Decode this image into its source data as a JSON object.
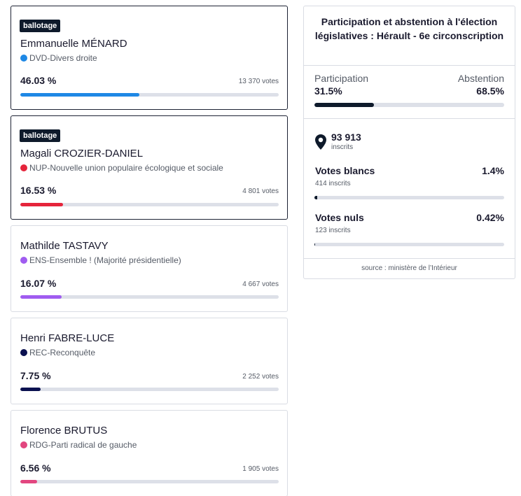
{
  "badge_label": "ballotage",
  "candidates": [
    {
      "name": "Emmanuelle MÉNARD",
      "party": "DVD-Divers droite",
      "color": "#1e88e5",
      "pct": "46.03 %",
      "pct_value": 46.03,
      "votes": "13 370 votes"
    },
    {
      "name": "Magali CROZIER-DANIEL",
      "party": "NUP-Nouvelle union populaire écologique et sociale",
      "color": "#e5243b",
      "pct": "16.53 %",
      "pct_value": 16.53,
      "votes": "4 801 votes"
    },
    {
      "name": "Mathilde TASTAVY",
      "party": "ENS-Ensemble ! (Majorité présidentielle)",
      "color": "#a05cf0",
      "pct": "16.07 %",
      "pct_value": 16.07,
      "votes": "4 667 votes"
    },
    {
      "name": "Henri FABRE-LUCE",
      "party": "REC-Reconquête",
      "color": "#0b1150",
      "pct": "7.75 %",
      "pct_value": 7.75,
      "votes": "2 252 votes"
    },
    {
      "name": "Florence BRUTUS",
      "party": "RDG-Parti radical de gauche",
      "color": "#e2467f",
      "pct": "6.56 %",
      "pct_value": 6.56,
      "votes": "1 905 votes"
    }
  ],
  "panel": {
    "title": "Participation et abstention à l'élection législatives : Hérault - 6e circonscription",
    "participation_label": "Participation",
    "participation_value": "31.5%",
    "participation_pct": 31.5,
    "abstention_label": "Abstention",
    "abstention_value": "68.5%",
    "inscrits_value": "93 913",
    "inscrits_label": "inscrits",
    "blancs_label": "Votes blancs",
    "blancs_sub": "414 inscrits",
    "blancs_value": "1.4%",
    "blancs_pct": 1.4,
    "nuls_label": "Votes nuls",
    "nuls_sub": "123 inscrits",
    "nuls_value": "0.42%",
    "nuls_pct": 0.42,
    "source": "source : ministère de l’Intérieur"
  }
}
